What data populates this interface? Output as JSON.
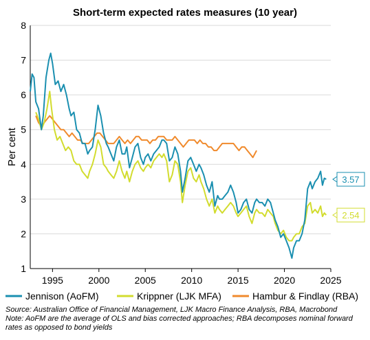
{
  "chart_data": {
    "type": "line",
    "title": "Short-term expected rates measures (10 year)",
    "ylabel": "Per cent",
    "xlabel": "",
    "xlim": [
      1992.6,
      2025
    ],
    "ylim": [
      1,
      8
    ],
    "xticks": [
      "1995",
      "2000",
      "2005",
      "2010",
      "2015",
      "2020",
      "2025"
    ],
    "yticks": [
      "1",
      "2",
      "3",
      "4",
      "5",
      "6",
      "7",
      "8"
    ],
    "grid": "horizontal",
    "legend_position": "bottom",
    "series": [
      {
        "name": "Jennison (AoFM)",
        "color": "#1a8fb0",
        "end_label": "3.57",
        "points": [
          [
            1992.6,
            6.1
          ],
          [
            1992.8,
            6.6
          ],
          [
            1993.0,
            6.5
          ],
          [
            1993.2,
            5.8
          ],
          [
            1993.5,
            5.6
          ],
          [
            1993.8,
            5.0
          ],
          [
            1994.0,
            5.4
          ],
          [
            1994.3,
            6.5
          ],
          [
            1994.6,
            7.0
          ],
          [
            1994.8,
            7.2
          ],
          [
            1995.0,
            6.9
          ],
          [
            1995.3,
            6.3
          ],
          [
            1995.6,
            6.4
          ],
          [
            1995.9,
            6.1
          ],
          [
            1996.2,
            6.3
          ],
          [
            1996.5,
            6.0
          ],
          [
            1996.8,
            5.6
          ],
          [
            1997.0,
            5.4
          ],
          [
            1997.3,
            5.5
          ],
          [
            1997.6,
            5.0
          ],
          [
            1997.9,
            4.9
          ],
          [
            1998.2,
            4.6
          ],
          [
            1998.5,
            4.6
          ],
          [
            1998.8,
            4.3
          ],
          [
            1999.0,
            4.4
          ],
          [
            1999.3,
            4.5
          ],
          [
            1999.6,
            5.0
          ],
          [
            1999.9,
            5.7
          ],
          [
            2000.2,
            5.4
          ],
          [
            2000.5,
            4.9
          ],
          [
            2000.8,
            4.6
          ],
          [
            2001.0,
            4.5
          ],
          [
            2001.3,
            4.3
          ],
          [
            2001.6,
            4.1
          ],
          [
            2001.9,
            4.5
          ],
          [
            2002.2,
            4.7
          ],
          [
            2002.5,
            4.3
          ],
          [
            2002.8,
            4.3
          ],
          [
            2003.0,
            4.5
          ],
          [
            2003.3,
            3.9
          ],
          [
            2003.6,
            4.2
          ],
          [
            2003.9,
            4.5
          ],
          [
            2004.2,
            4.6
          ],
          [
            2004.5,
            4.2
          ],
          [
            2004.8,
            4.0
          ],
          [
            2005.0,
            4.2
          ],
          [
            2005.3,
            4.3
          ],
          [
            2005.6,
            4.1
          ],
          [
            2005.9,
            4.3
          ],
          [
            2006.2,
            4.4
          ],
          [
            2006.5,
            4.5
          ],
          [
            2006.8,
            4.7
          ],
          [
            2007.0,
            4.7
          ],
          [
            2007.3,
            4.6
          ],
          [
            2007.6,
            4.1
          ],
          [
            2007.9,
            4.2
          ],
          [
            2008.2,
            4.5
          ],
          [
            2008.5,
            4.3
          ],
          [
            2008.8,
            3.8
          ],
          [
            2009.0,
            3.2
          ],
          [
            2009.3,
            3.6
          ],
          [
            2009.6,
            4.1
          ],
          [
            2009.9,
            4.2
          ],
          [
            2010.2,
            4.0
          ],
          [
            2010.5,
            3.8
          ],
          [
            2010.8,
            4.0
          ],
          [
            2011.0,
            3.9
          ],
          [
            2011.3,
            3.7
          ],
          [
            2011.6,
            3.4
          ],
          [
            2011.9,
            3.2
          ],
          [
            2012.2,
            3.5
          ],
          [
            2012.5,
            2.8
          ],
          [
            2012.8,
            3.1
          ],
          [
            2013.0,
            3.0
          ],
          [
            2013.3,
            3.0
          ],
          [
            2013.6,
            3.1
          ],
          [
            2013.9,
            3.2
          ],
          [
            2014.2,
            3.4
          ],
          [
            2014.5,
            3.2
          ],
          [
            2014.8,
            2.9
          ],
          [
            2015.0,
            2.6
          ],
          [
            2015.3,
            2.7
          ],
          [
            2015.6,
            2.9
          ],
          [
            2015.9,
            3.0
          ],
          [
            2016.2,
            2.7
          ],
          [
            2016.5,
            2.6
          ],
          [
            2016.8,
            2.9
          ],
          [
            2017.0,
            3.0
          ],
          [
            2017.3,
            2.9
          ],
          [
            2017.6,
            2.9
          ],
          [
            2017.9,
            2.8
          ],
          [
            2018.2,
            3.0
          ],
          [
            2018.5,
            2.9
          ],
          [
            2018.8,
            2.6
          ],
          [
            2019.0,
            2.4
          ],
          [
            2019.3,
            2.2
          ],
          [
            2019.6,
            1.9
          ],
          [
            2019.9,
            2.0
          ],
          [
            2020.2,
            1.8
          ],
          [
            2020.5,
            1.6
          ],
          [
            2020.8,
            1.3
          ],
          [
            2021.0,
            1.6
          ],
          [
            2021.3,
            1.8
          ],
          [
            2021.6,
            1.8
          ],
          [
            2021.9,
            2.0
          ],
          [
            2022.2,
            2.4
          ],
          [
            2022.5,
            3.3
          ],
          [
            2022.8,
            3.5
          ],
          [
            2023.0,
            3.3
          ],
          [
            2023.3,
            3.5
          ],
          [
            2023.6,
            3.6
          ],
          [
            2023.9,
            3.8
          ],
          [
            2024.1,
            3.4
          ],
          [
            2024.3,
            3.6
          ],
          [
            2024.5,
            3.57
          ]
        ]
      },
      {
        "name": "Krippner (LJK MFA)",
        "color": "#d2dc2e",
        "end_label": "2.54",
        "points": [
          [
            1993.2,
            5.5
          ],
          [
            1993.5,
            5.3
          ],
          [
            1993.8,
            5.0
          ],
          [
            1994.1,
            5.2
          ],
          [
            1994.4,
            5.6
          ],
          [
            1994.7,
            6.1
          ],
          [
            1994.9,
            5.6
          ],
          [
            1995.2,
            5.0
          ],
          [
            1995.5,
            4.7
          ],
          [
            1995.8,
            4.8
          ],
          [
            1996.1,
            4.6
          ],
          [
            1996.4,
            4.4
          ],
          [
            1996.7,
            4.5
          ],
          [
            1997.0,
            4.4
          ],
          [
            1997.3,
            4.1
          ],
          [
            1997.6,
            4.0
          ],
          [
            1997.9,
            4.0
          ],
          [
            1998.2,
            3.8
          ],
          [
            1998.5,
            3.7
          ],
          [
            1998.8,
            3.6
          ],
          [
            1999.0,
            3.8
          ],
          [
            1999.3,
            4.0
          ],
          [
            1999.6,
            4.3
          ],
          [
            1999.9,
            4.7
          ],
          [
            2000.2,
            4.5
          ],
          [
            2000.5,
            4.0
          ],
          [
            2000.8,
            3.9
          ],
          [
            2001.0,
            3.8
          ],
          [
            2001.3,
            3.7
          ],
          [
            2001.6,
            3.6
          ],
          [
            2001.9,
            3.8
          ],
          [
            2002.2,
            4.1
          ],
          [
            2002.5,
            3.8
          ],
          [
            2002.8,
            3.6
          ],
          [
            2003.0,
            3.8
          ],
          [
            2003.3,
            3.5
          ],
          [
            2003.6,
            3.8
          ],
          [
            2003.9,
            4.0
          ],
          [
            2004.2,
            4.1
          ],
          [
            2004.5,
            3.9
          ],
          [
            2004.8,
            3.8
          ],
          [
            2005.0,
            3.9
          ],
          [
            2005.3,
            4.0
          ],
          [
            2005.6,
            3.9
          ],
          [
            2005.9,
            4.1
          ],
          [
            2006.2,
            4.2
          ],
          [
            2006.5,
            4.3
          ],
          [
            2006.8,
            4.2
          ],
          [
            2007.0,
            4.3
          ],
          [
            2007.3,
            4.1
          ],
          [
            2007.6,
            3.5
          ],
          [
            2007.9,
            3.7
          ],
          [
            2008.2,
            4.1
          ],
          [
            2008.5,
            4.0
          ],
          [
            2008.8,
            3.5
          ],
          [
            2009.0,
            2.9
          ],
          [
            2009.3,
            3.4
          ],
          [
            2009.6,
            3.8
          ],
          [
            2009.9,
            3.9
          ],
          [
            2010.2,
            3.6
          ],
          [
            2010.5,
            3.5
          ],
          [
            2010.8,
            3.7
          ],
          [
            2011.0,
            3.5
          ],
          [
            2011.3,
            3.3
          ],
          [
            2011.6,
            3.0
          ],
          [
            2011.9,
            2.8
          ],
          [
            2012.2,
            3.0
          ],
          [
            2012.5,
            2.6
          ],
          [
            2012.8,
            2.8
          ],
          [
            2013.0,
            2.7
          ],
          [
            2013.3,
            2.6
          ],
          [
            2013.6,
            2.7
          ],
          [
            2013.9,
            2.8
          ],
          [
            2014.2,
            2.9
          ],
          [
            2014.5,
            2.8
          ],
          [
            2014.8,
            2.6
          ],
          [
            2015.0,
            2.5
          ],
          [
            2015.3,
            2.6
          ],
          [
            2015.6,
            2.7
          ],
          [
            2015.9,
            2.8
          ],
          [
            2016.2,
            2.5
          ],
          [
            2016.5,
            2.3
          ],
          [
            2016.8,
            2.6
          ],
          [
            2017.0,
            2.7
          ],
          [
            2017.3,
            2.6
          ],
          [
            2017.6,
            2.6
          ],
          [
            2017.9,
            2.5
          ],
          [
            2018.2,
            2.7
          ],
          [
            2018.5,
            2.6
          ],
          [
            2018.8,
            2.5
          ],
          [
            2019.0,
            2.3
          ],
          [
            2019.3,
            2.1
          ],
          [
            2019.6,
            2.0
          ],
          [
            2019.9,
            2.1
          ],
          [
            2020.2,
            1.9
          ],
          [
            2020.5,
            1.8
          ],
          [
            2020.8,
            1.8
          ],
          [
            2021.0,
            1.9
          ],
          [
            2021.3,
            2.0
          ],
          [
            2021.6,
            2.0
          ],
          [
            2021.9,
            2.2
          ],
          [
            2022.2,
            2.3
          ],
          [
            2022.5,
            2.8
          ],
          [
            2022.8,
            2.9
          ],
          [
            2023.0,
            2.6
          ],
          [
            2023.3,
            2.7
          ],
          [
            2023.6,
            2.6
          ],
          [
            2023.9,
            2.8
          ],
          [
            2024.1,
            2.5
          ],
          [
            2024.3,
            2.6
          ],
          [
            2024.5,
            2.54
          ]
        ]
      },
      {
        "name": "Hambur & Findlay (RBA)",
        "color": "#f08a2c",
        "points": [
          [
            1993.2,
            5.4
          ],
          [
            1993.5,
            5.2
          ],
          [
            1993.8,
            5.1
          ],
          [
            1994.1,
            5.2
          ],
          [
            1994.4,
            5.3
          ],
          [
            1994.7,
            5.4
          ],
          [
            1995.0,
            5.3
          ],
          [
            1995.3,
            5.2
          ],
          [
            1995.6,
            5.1
          ],
          [
            1995.9,
            5.0
          ],
          [
            1996.2,
            5.0
          ],
          [
            1996.5,
            4.9
          ],
          [
            1996.8,
            4.8
          ],
          [
            1997.1,
            4.9
          ],
          [
            1997.4,
            4.8
          ],
          [
            1997.7,
            4.7
          ],
          [
            1998.0,
            4.7
          ],
          [
            1998.3,
            4.6
          ],
          [
            1998.6,
            4.6
          ],
          [
            1998.9,
            4.6
          ],
          [
            1999.2,
            4.7
          ],
          [
            1999.5,
            4.8
          ],
          [
            1999.8,
            4.9
          ],
          [
            2000.1,
            4.9
          ],
          [
            2000.4,
            4.8
          ],
          [
            2000.7,
            4.7
          ],
          [
            2001.0,
            4.6
          ],
          [
            2001.3,
            4.6
          ],
          [
            2001.6,
            4.6
          ],
          [
            2001.9,
            4.7
          ],
          [
            2002.2,
            4.8
          ],
          [
            2002.5,
            4.7
          ],
          [
            2002.8,
            4.6
          ],
          [
            2003.1,
            4.7
          ],
          [
            2003.4,
            4.6
          ],
          [
            2003.7,
            4.7
          ],
          [
            2004.0,
            4.8
          ],
          [
            2004.3,
            4.8
          ],
          [
            2004.6,
            4.7
          ],
          [
            2004.9,
            4.7
          ],
          [
            2005.2,
            4.7
          ],
          [
            2005.5,
            4.6
          ],
          [
            2005.8,
            4.7
          ],
          [
            2006.1,
            4.7
          ],
          [
            2006.4,
            4.8
          ],
          [
            2006.7,
            4.8
          ],
          [
            2007.0,
            4.8
          ],
          [
            2007.3,
            4.7
          ],
          [
            2007.6,
            4.7
          ],
          [
            2007.9,
            4.7
          ],
          [
            2008.2,
            4.8
          ],
          [
            2008.5,
            4.7
          ],
          [
            2008.8,
            4.6
          ],
          [
            2009.1,
            4.5
          ],
          [
            2009.4,
            4.6
          ],
          [
            2009.7,
            4.7
          ],
          [
            2010.0,
            4.7
          ],
          [
            2010.3,
            4.7
          ],
          [
            2010.6,
            4.6
          ],
          [
            2010.9,
            4.7
          ],
          [
            2011.2,
            4.6
          ],
          [
            2011.5,
            4.6
          ],
          [
            2011.8,
            4.5
          ],
          [
            2012.1,
            4.5
          ],
          [
            2012.4,
            4.4
          ],
          [
            2012.7,
            4.4
          ],
          [
            2013.0,
            4.5
          ],
          [
            2013.3,
            4.6
          ],
          [
            2013.6,
            4.6
          ],
          [
            2013.9,
            4.6
          ],
          [
            2014.2,
            4.6
          ],
          [
            2014.5,
            4.6
          ],
          [
            2014.8,
            4.5
          ],
          [
            2015.1,
            4.4
          ],
          [
            2015.4,
            4.5
          ],
          [
            2015.7,
            4.5
          ],
          [
            2016.0,
            4.4
          ],
          [
            2016.3,
            4.3
          ],
          [
            2016.6,
            4.2
          ],
          [
            2016.8,
            4.3
          ],
          [
            2017.0,
            4.4
          ]
        ]
      }
    ],
    "source_note": "Source: Australian Office of Financial Management, LJK Macro Finance Analysis, RBA, Macrobond",
    "note": "Note: AoFM are the average of OLS and bias corrected approaches; RBA decomposes nominal forward",
    "note_cont": "rates as opposed to bond yields"
  }
}
